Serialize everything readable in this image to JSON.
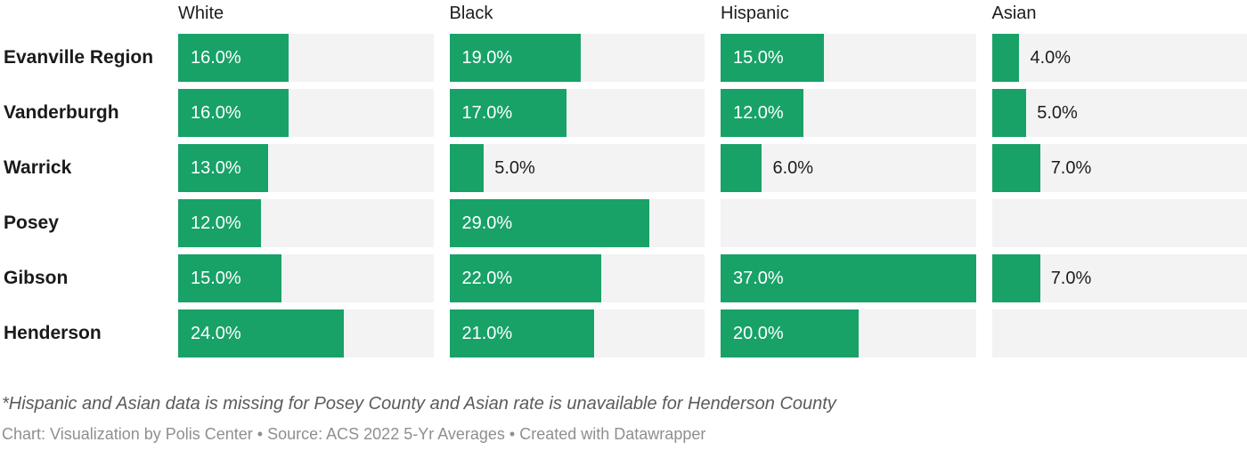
{
  "chart_data": {
    "type": "bar",
    "orientation": "horizontal",
    "layout": "small-multiples-columns",
    "categories": [
      "Evanville Region",
      "Vanderburgh",
      "Warrick",
      "Posey",
      "Gibson",
      "Henderson"
    ],
    "series": [
      {
        "name": "White",
        "values": [
          16,
          16,
          13,
          12,
          15,
          24
        ],
        "labels": [
          "16.0%",
          "16.0%",
          "13.0%",
          "12.0%",
          "15.0%",
          "24.0%"
        ]
      },
      {
        "name": "Black",
        "values": [
          19,
          17,
          5,
          29,
          22,
          21
        ],
        "labels": [
          "19.0%",
          "17.0%",
          "5.0%",
          "29.0%",
          "22.0%",
          "21.0%"
        ]
      },
      {
        "name": "Hispanic",
        "values": [
          15,
          12,
          6,
          null,
          37,
          20
        ],
        "labels": [
          "15.0%",
          "12.0%",
          "6.0%",
          "",
          "37.0%",
          "20.0%"
        ]
      },
      {
        "name": "Asian",
        "values": [
          4,
          5,
          7,
          null,
          7,
          null
        ],
        "labels": [
          "4.0%",
          "5.0%",
          "7.0%",
          "",
          "7.0%",
          ""
        ]
      }
    ],
    "xlim": [
      0,
      37
    ],
    "grid": false,
    "legend_position": "column-headers",
    "bar_color": "#18a268",
    "track_color": "#f3f3f3",
    "missing_cells": [
      [
        "Posey",
        "Hispanic"
      ],
      [
        "Posey",
        "Asian"
      ],
      [
        "Henderson",
        "Asian"
      ]
    ]
  },
  "footer": {
    "note": "*Hispanic and Asian data is missing for Posey County and Asian rate is unavailable for Henderson County",
    "attribution": "Chart: Visualization by Polis Center • Source: ACS 2022 5-Yr Averages • Created with Datawrapper"
  }
}
